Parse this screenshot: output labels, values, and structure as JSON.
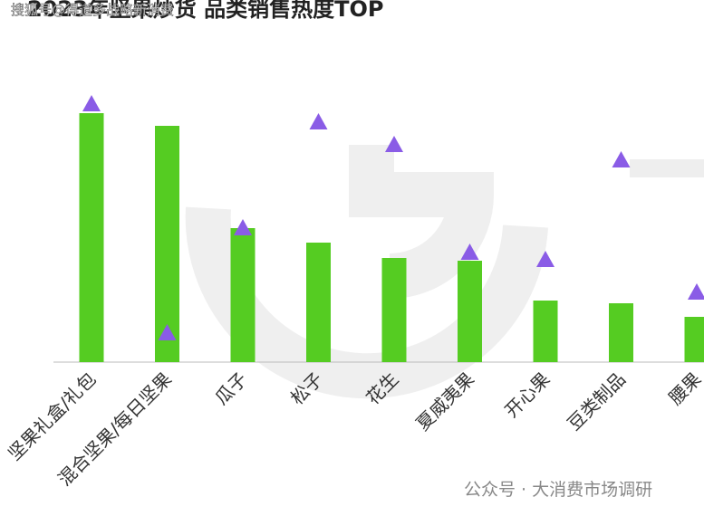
{
  "chart_data": {
    "type": "bar",
    "title": "2023年坚果炒货 品类销售热度TOP",
    "watermark": "搜狐号@得道多战略新消费",
    "footer": "公众号 · 大消费市场调研",
    "categories": [
      "坚果礼盒/礼包",
      "混合坚果/每日坚果",
      "瓜子",
      "松子",
      "花生",
      "夏威夷果",
      "开心果",
      "豆类制品",
      "腰果"
    ],
    "series": [
      {
        "color": "#55cc22",
        "values": [
          275,
          261,
          148,
          132,
          115,
          112,
          68,
          65,
          50
        ]
      },
      {
        "color": "#8a5ce6",
        "marker": "triangle",
        "values": [
          285,
          32,
          148,
          265,
          240,
          121,
          113,
          223,
          77
        ]
      }
    ],
    "ylim": [
      0,
      300
    ]
  }
}
